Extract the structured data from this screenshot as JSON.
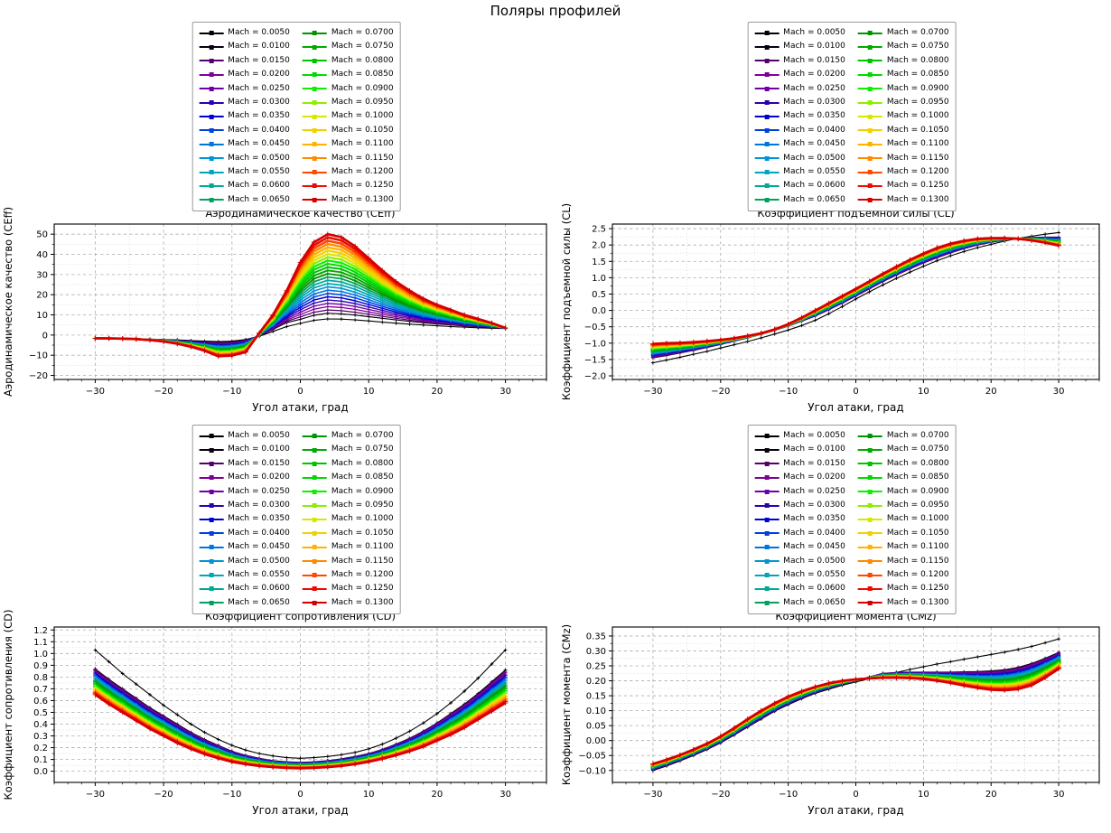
{
  "figure": {
    "title": "Поляры профилей",
    "background": "#ffffff"
  },
  "legend": {
    "prefix": "Mach = ",
    "columns": 2,
    "rows_per_column": 13,
    "position": "above each subplot, centered, overlapping the subplot title",
    "mach_values": [
      "0.0050",
      "0.0100",
      "0.0150",
      "0.0200",
      "0.0250",
      "0.0300",
      "0.0350",
      "0.0400",
      "0.0450",
      "0.0500",
      "0.0550",
      "0.0600",
      "0.0650",
      "0.0700",
      "0.0750",
      "0.0800",
      "0.0850",
      "0.0900",
      "0.0950",
      "0.1000",
      "0.1050",
      "0.1100",
      "0.1150",
      "0.1200",
      "0.1250",
      "0.1300"
    ],
    "colors": [
      "#000000",
      "#0a0011",
      "#53006a",
      "#7d0096",
      "#6f00a8",
      "#2a00b0",
      "#0000d4",
      "#0041dd",
      "#0075dc",
      "#0094d6",
      "#00a6b8",
      "#00aa92",
      "#00a25e",
      "#009400",
      "#00ab00",
      "#00c300",
      "#00d900",
      "#0cf000",
      "#8cee00",
      "#d8e600",
      "#f3d100",
      "#ffb300",
      "#ff8a00",
      "#ff4700",
      "#eb0b00",
      "#d40000"
    ]
  },
  "chart_data": [
    {
      "id": "ceff",
      "type": "line",
      "position": "top-left",
      "title": "Аэродинамическое качество (CEff)",
      "xlabel": "Угол атаки, град",
      "ylabel": "Аэродинамическое качество (CEff)",
      "xlim": [
        -36,
        36
      ],
      "ylim": [
        -22,
        55
      ],
      "xticks": [
        -30,
        -20,
        -10,
        0,
        10,
        20,
        30
      ],
      "xtick_labels": [
        "−30",
        "−20",
        "−10",
        "0",
        "10",
        "20",
        "30"
      ],
      "yticks": [
        -20,
        -10,
        0,
        10,
        20,
        30,
        40,
        50
      ],
      "ytick_labels": [
        "−20",
        "−10",
        "0",
        "10",
        "20",
        "30",
        "40",
        "50"
      ],
      "grid": "major dashed gray + minor dotted light gray",
      "x": [
        -30,
        -28,
        -26,
        -24,
        -22,
        -20,
        -18,
        -16,
        -14,
        -12,
        -10,
        -8,
        -6,
        -4,
        -2,
        0,
        2,
        4,
        6,
        8,
        10,
        12,
        14,
        16,
        18,
        20,
        22,
        24,
        26,
        28,
        30
      ],
      "series_anchors": [
        {
          "name": "Mach = 0.0050",
          "values": [
            -1.7,
            -1.75,
            -1.8,
            -1.9,
            -2.0,
            -2.2,
            -2.4,
            -2.7,
            -3.0,
            -3.2,
            -3.0,
            -2.2,
            -0.6,
            1.8,
            4.2,
            5.8,
            7.3,
            8.0,
            7.9,
            7.5,
            7.0,
            6.4,
            5.9,
            5.4,
            5.0,
            4.6,
            4.2,
            3.9,
            3.6,
            3.4,
            3.2
          ]
        },
        {
          "name": "Mach = 0.0100",
          "values": [
            -1.7,
            -1.75,
            -1.85,
            -1.95,
            -2.1,
            -2.3,
            -2.6,
            -3.0,
            -3.4,
            -3.7,
            -3.4,
            -2.4,
            -0.4,
            2.8,
            6.2,
            7.8,
            9.8,
            10.8,
            10.5,
            9.9,
            9.1,
            8.3,
            7.5,
            6.8,
            6.1,
            5.5,
            5.0,
            4.5,
            4.1,
            3.7,
            3.4
          ]
        },
        {
          "name": "Mach = 0.1300",
          "values": [
            -1.6,
            -1.65,
            -1.75,
            -2.0,
            -2.5,
            -3.2,
            -4.3,
            -5.8,
            -7.8,
            -10.5,
            -10.2,
            -8.5,
            1.0,
            10.0,
            22.0,
            36.0,
            46.0,
            50.0,
            48.5,
            44.0,
            38.0,
            32.0,
            26.5,
            22.0,
            18.0,
            15.0,
            12.5,
            10.0,
            8.0,
            6.0,
            3.5
          ]
        }
      ],
      "series_note": "26 series total (one per Mach value); curves for Mach 0.0150–0.1250 lie evenly spaced between the 0.0100 and 0.1300 anchor curves"
    },
    {
      "id": "cl",
      "type": "line",
      "position": "top-right",
      "title": "Коэффициент подъемной силы (CL)",
      "xlabel": "Угол атаки, град",
      "ylabel": "Коэффициент подъемной силы (CL)",
      "xlim": [
        -36,
        36
      ],
      "ylim": [
        -2.11,
        2.64
      ],
      "xticks": [
        -30,
        -20,
        -10,
        0,
        10,
        20,
        30
      ],
      "xtick_labels": [
        "−30",
        "−20",
        "−10",
        "0",
        "10",
        "20",
        "30"
      ],
      "yticks": [
        -2.0,
        -1.5,
        -1.0,
        -0.5,
        0.0,
        0.5,
        1.0,
        1.5,
        2.0,
        2.5
      ],
      "ytick_labels": [
        "−2.0",
        "−1.5",
        "−1.0",
        "−0.5",
        "0.0",
        "0.5",
        "1.0",
        "1.5",
        "2.0",
        "2.5"
      ],
      "grid": "major dashed gray + minor dotted light gray",
      "x": [
        -30,
        -28,
        -26,
        -24,
        -22,
        -20,
        -18,
        -16,
        -14,
        -12,
        -10,
        -8,
        -6,
        -4,
        -2,
        0,
        2,
        4,
        6,
        8,
        10,
        12,
        14,
        16,
        18,
        20,
        22,
        24,
        26,
        28,
        30
      ],
      "series_anchors": [
        {
          "name": "Mach = 0.0050",
          "values": [
            -1.6,
            -1.52,
            -1.43,
            -1.34,
            -1.25,
            -1.15,
            -1.05,
            -0.95,
            -0.84,
            -0.72,
            -0.6,
            -0.46,
            -0.3,
            -0.1,
            0.12,
            0.35,
            0.57,
            0.78,
            0.98,
            1.17,
            1.35,
            1.52,
            1.67,
            1.8,
            1.92,
            2.02,
            2.12,
            2.2,
            2.27,
            2.33,
            2.38
          ]
        },
        {
          "name": "Mach = 0.0100",
          "values": [
            -1.45,
            -1.38,
            -1.3,
            -1.22,
            -1.13,
            -1.04,
            -0.94,
            -0.84,
            -0.73,
            -0.61,
            -0.48,
            -0.33,
            -0.17,
            0.02,
            0.22,
            0.44,
            0.66,
            0.88,
            1.08,
            1.27,
            1.45,
            1.61,
            1.76,
            1.89,
            2.0,
            2.08,
            2.15,
            2.2,
            2.23,
            2.24,
            2.24
          ]
        },
        {
          "name": "Mach = 0.1300",
          "values": [
            -1.02,
            -1.0,
            -0.99,
            -0.97,
            -0.94,
            -0.9,
            -0.85,
            -0.78,
            -0.7,
            -0.58,
            -0.42,
            -0.22,
            0.0,
            0.22,
            0.44,
            0.66,
            0.89,
            1.12,
            1.34,
            1.55,
            1.74,
            1.91,
            2.04,
            2.13,
            2.19,
            2.21,
            2.21,
            2.19,
            2.14,
            2.07,
            1.98
          ]
        }
      ],
      "series_note": "26 series total (one per Mach value); curves for Mach 0.0150–0.1250 lie evenly spaced between the 0.0100 and 0.1300 anchor curves"
    },
    {
      "id": "cd",
      "type": "line",
      "position": "bottom-left",
      "title": "Коэффициент сопротивления (CD)",
      "xlabel": "Угол атаки, град",
      "ylabel": "Коэффициент сопротивления (CD)",
      "xlim": [
        -36,
        36
      ],
      "ylim": [
        -0.095,
        1.225
      ],
      "xticks": [
        -30,
        -20,
        -10,
        0,
        10,
        20,
        30
      ],
      "xtick_labels": [
        "−30",
        "−20",
        "−10",
        "0",
        "10",
        "20",
        "30"
      ],
      "yticks": [
        0.0,
        0.1,
        0.2,
        0.3,
        0.4,
        0.5,
        0.6,
        0.7,
        0.8,
        0.9,
        1.0,
        1.1,
        1.2
      ],
      "ytick_labels": [
        "0.0",
        "0.1",
        "0.2",
        "0.3",
        "0.4",
        "0.5",
        "0.6",
        "0.7",
        "0.8",
        "0.9",
        "1.0",
        "1.1",
        "1.2"
      ],
      "grid": "major dashed gray + minor dotted light gray",
      "x": [
        -30,
        -28,
        -26,
        -24,
        -22,
        -20,
        -18,
        -16,
        -14,
        -12,
        -10,
        -8,
        -6,
        -4,
        -2,
        0,
        2,
        4,
        6,
        8,
        10,
        12,
        14,
        16,
        18,
        20,
        22,
        24,
        26,
        28,
        30
      ],
      "series_anchors": [
        {
          "name": "Mach = 0.0050",
          "values": [
            1.03,
            0.93,
            0.83,
            0.74,
            0.65,
            0.56,
            0.48,
            0.4,
            0.33,
            0.27,
            0.22,
            0.18,
            0.15,
            0.13,
            0.115,
            0.11,
            0.115,
            0.125,
            0.14,
            0.16,
            0.19,
            0.23,
            0.28,
            0.34,
            0.41,
            0.49,
            0.58,
            0.68,
            0.79,
            0.91,
            1.03
          ]
        },
        {
          "name": "Mach = 0.0100",
          "values": [
            0.87,
            0.78,
            0.7,
            0.62,
            0.54,
            0.47,
            0.4,
            0.33,
            0.27,
            0.22,
            0.17,
            0.135,
            0.11,
            0.09,
            0.08,
            0.075,
            0.08,
            0.09,
            0.105,
            0.125,
            0.15,
            0.185,
            0.23,
            0.28,
            0.34,
            0.41,
            0.49,
            0.57,
            0.66,
            0.76,
            0.86
          ]
        },
        {
          "name": "Mach = 0.1300",
          "values": [
            0.65,
            0.57,
            0.5,
            0.43,
            0.36,
            0.3,
            0.24,
            0.19,
            0.145,
            0.11,
            0.08,
            0.06,
            0.045,
            0.035,
            0.028,
            0.025,
            0.028,
            0.035,
            0.045,
            0.06,
            0.08,
            0.105,
            0.135,
            0.17,
            0.21,
            0.26,
            0.31,
            0.37,
            0.44,
            0.51,
            0.58
          ]
        }
      ],
      "series_note": "26 series total (one per Mach value); curves for Mach 0.0150–0.1250 lie evenly spaced between the 0.0100 and 0.1300 anchor curves"
    },
    {
      "id": "cmz",
      "type": "line",
      "position": "bottom-right",
      "title": "Коэффициент момента (CMz)",
      "xlabel": "Угол атаки, град",
      "ylabel": "Коэффициент момента (CMz)",
      "xlim": [
        -36,
        36
      ],
      "ylim": [
        -0.14,
        0.38
      ],
      "xticks": [
        -30,
        -20,
        -10,
        0,
        10,
        20,
        30
      ],
      "xtick_labels": [
        "−30",
        "−20",
        "−10",
        "0",
        "10",
        "20",
        "30"
      ],
      "yticks": [
        -0.1,
        -0.05,
        0.0,
        0.05,
        0.1,
        0.15,
        0.2,
        0.25,
        0.3,
        0.35
      ],
      "ytick_labels": [
        "−0.10",
        "−0.05",
        "0.00",
        "0.05",
        "0.10",
        "0.15",
        "0.20",
        "0.25",
        "0.30",
        "0.35"
      ],
      "grid": "major dashed gray + minor dotted light gray",
      "x": [
        -30,
        -28,
        -26,
        -24,
        -22,
        -20,
        -18,
        -16,
        -14,
        -12,
        -10,
        -8,
        -6,
        -4,
        -2,
        0,
        2,
        4,
        6,
        8,
        10,
        12,
        14,
        16,
        18,
        20,
        22,
        24,
        26,
        28,
        30
      ],
      "series_anchors": [
        {
          "name": "Mach = 0.0050",
          "values": [
            -0.1,
            -0.085,
            -0.068,
            -0.05,
            -0.03,
            -0.008,
            0.018,
            0.045,
            0.072,
            0.098,
            0.12,
            0.14,
            0.158,
            0.172,
            0.185,
            0.196,
            0.207,
            0.218,
            0.228,
            0.238,
            0.247,
            0.256,
            0.264,
            0.272,
            0.28,
            0.288,
            0.296,
            0.305,
            0.315,
            0.327,
            0.34
          ]
        },
        {
          "name": "Mach = 0.0100",
          "values": [
            -0.098,
            -0.083,
            -0.066,
            -0.048,
            -0.028,
            -0.006,
            0.02,
            0.047,
            0.074,
            0.1,
            0.122,
            0.142,
            0.16,
            0.175,
            0.188,
            0.2,
            0.213,
            0.225,
            0.228,
            0.229,
            0.229,
            0.229,
            0.229,
            0.23,
            0.231,
            0.233,
            0.237,
            0.245,
            0.258,
            0.275,
            0.295
          ]
        },
        {
          "name": "Mach = 0.1300",
          "values": [
            -0.078,
            -0.064,
            -0.048,
            -0.03,
            -0.01,
            0.014,
            0.042,
            0.072,
            0.1,
            0.125,
            0.147,
            0.165,
            0.18,
            0.192,
            0.2,
            0.205,
            0.208,
            0.21,
            0.21,
            0.209,
            0.206,
            0.2,
            0.193,
            0.184,
            0.176,
            0.17,
            0.168,
            0.172,
            0.185,
            0.21,
            0.24
          ]
        }
      ],
      "series_note": "26 series total (one per Mach value); curves for Mach 0.0150–0.1250 lie evenly spaced between the 0.0100 and 0.1300 anchor curves"
    }
  ]
}
